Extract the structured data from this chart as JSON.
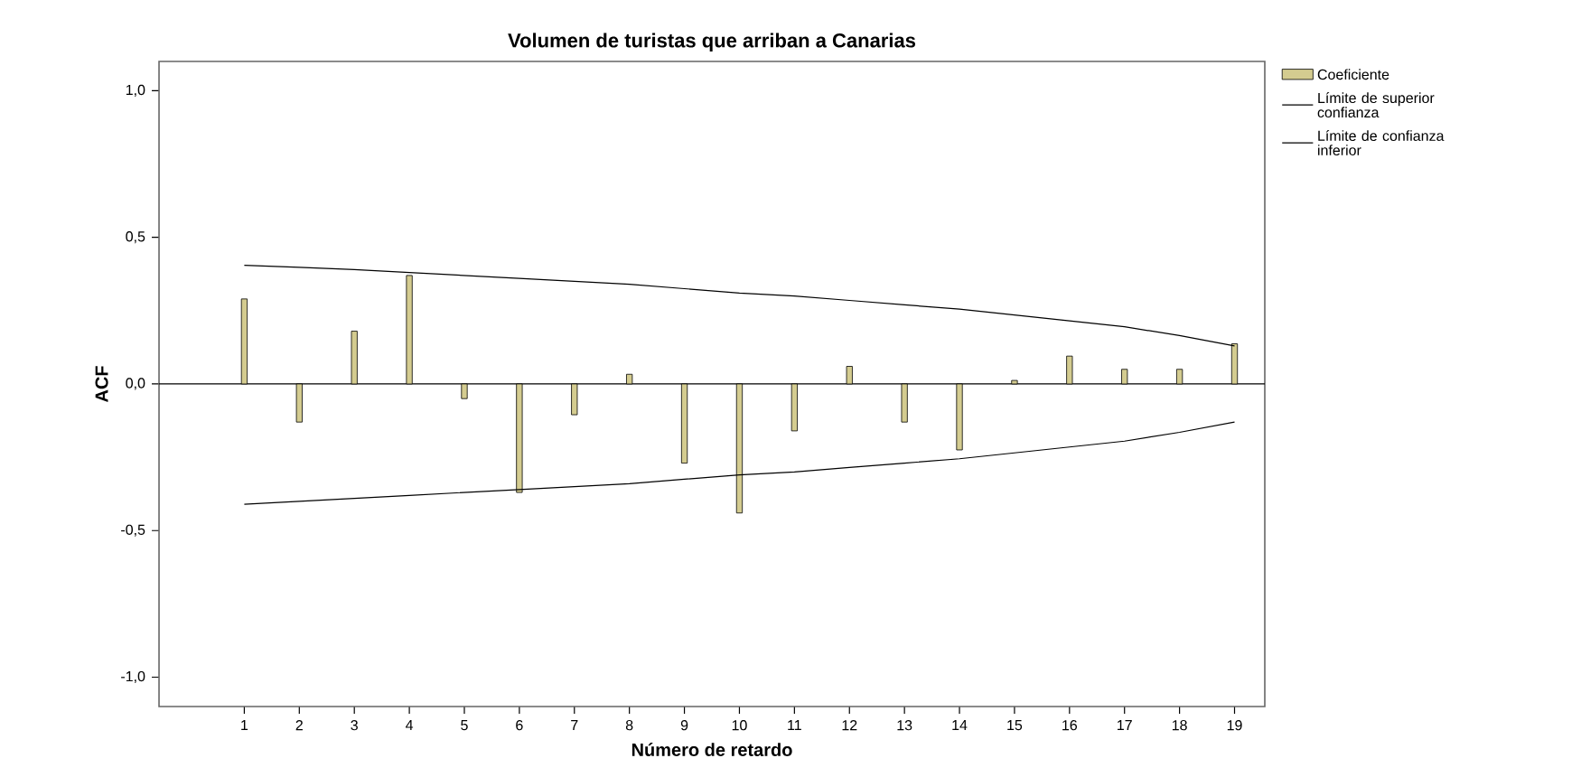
{
  "chart_data": {
    "type": "bar",
    "title": "Volumen de turistas que arriban a Canarias",
    "xlabel": "Número de retardo",
    "ylabel": "ACF",
    "categories": [
      "1",
      "2",
      "3",
      "4",
      "5",
      "6",
      "7",
      "8",
      "9",
      "10",
      "11",
      "12",
      "13",
      "14",
      "15",
      "16",
      "17",
      "18",
      "19"
    ],
    "series": [
      {
        "name": "Coeficiente",
        "color": "#d4cc90",
        "values": [
          0.29,
          -0.13,
          0.18,
          0.37,
          -0.05,
          -0.37,
          -0.105,
          0.033,
          -0.27,
          -0.44,
          -0.16,
          0.06,
          -0.13,
          -0.225,
          0.012,
          0.095,
          0.05,
          0.05,
          0.137
        ]
      },
      {
        "name": "Límite de superior confianza",
        "type": "line",
        "color": "#000000",
        "values": [
          0.405,
          0.398,
          0.39,
          0.38,
          0.37,
          0.36,
          0.35,
          0.34,
          0.325,
          0.31,
          0.3,
          0.285,
          0.27,
          0.255,
          0.235,
          0.215,
          0.195,
          0.165,
          0.13
        ]
      },
      {
        "name": "Límite de confianza inferior",
        "type": "line",
        "color": "#000000",
        "values": [
          -0.41,
          -0.4,
          -0.39,
          -0.38,
          -0.37,
          -0.36,
          -0.35,
          -0.34,
          -0.325,
          -0.31,
          -0.3,
          -0.285,
          -0.27,
          -0.255,
          -0.235,
          -0.215,
          -0.195,
          -0.165,
          -0.13
        ]
      }
    ],
    "ylim": [
      -1.1,
      1.1
    ],
    "yticks": [
      {
        "value": -1.0,
        "label": "-1,0"
      },
      {
        "value": -0.5,
        "label": "-0,5"
      },
      {
        "value": 0.0,
        "label": "0,0"
      },
      {
        "value": 0.5,
        "label": "0,5"
      },
      {
        "value": 1.0,
        "label": "1,0"
      }
    ],
    "ref_lines": [
      {
        "axis": "y",
        "value": 0
      }
    ],
    "legend": "top right",
    "marker": "none",
    "line_style": "solid"
  }
}
